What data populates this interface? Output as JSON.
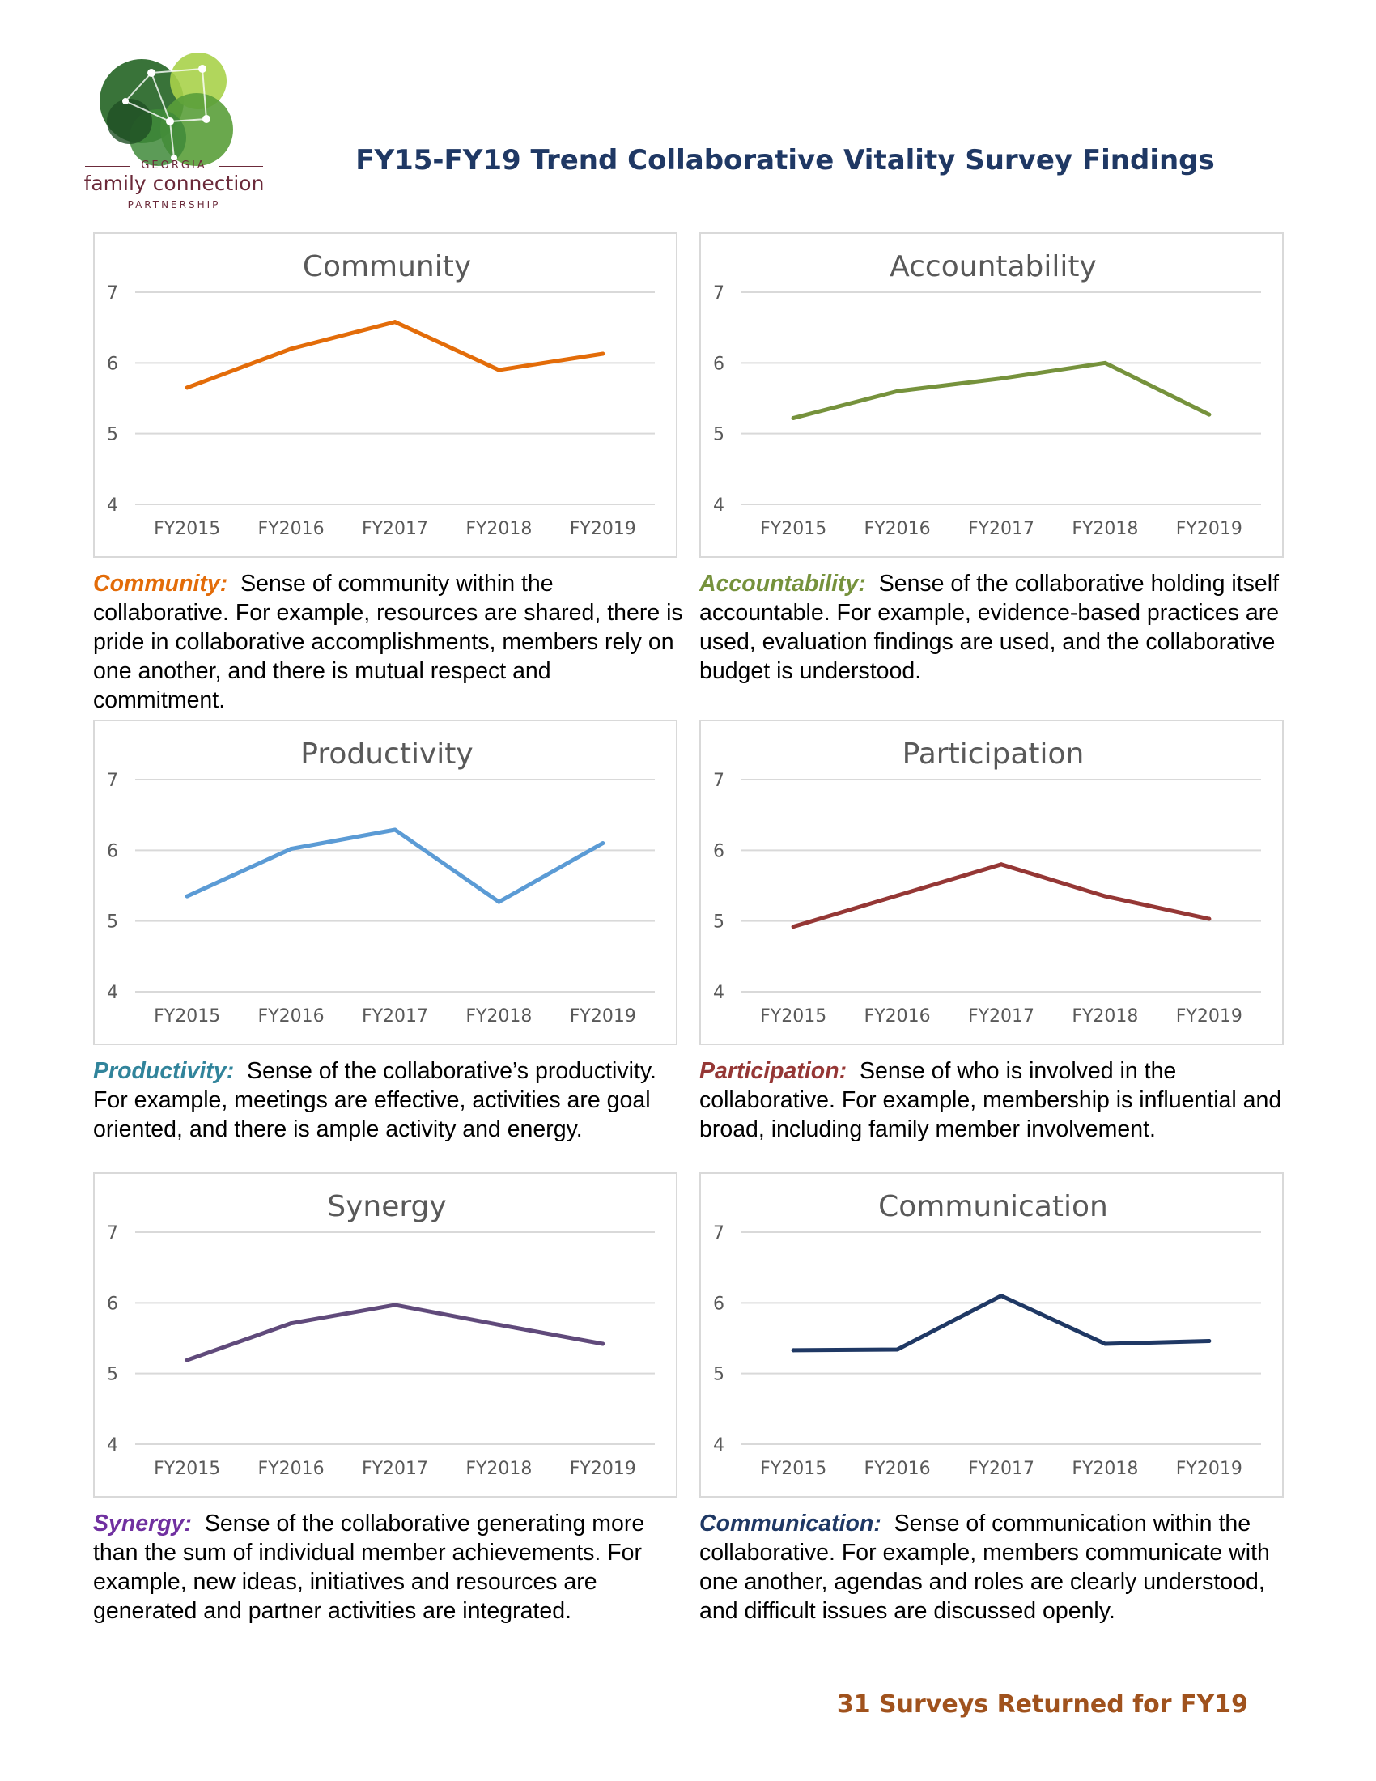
{
  "logo": {
    "line1": "GEORGIA",
    "line2": "family connection",
    "line3": "PARTNERSHIP",
    "brand_color": "#6b2a3a",
    "icon": "network-circles-logo"
  },
  "page_title": "FY15-FY19 Trend Collaborative Vitality Survey Findings",
  "footer": "31 Surveys Returned for FY19",
  "colors": {
    "title": "#1f3864",
    "footer": "#a0521d",
    "gridline": "#d9d9d9",
    "axis_text": "#595959"
  },
  "chart_data": [
    {
      "type": "line",
      "title": "Community",
      "categories": [
        "FY2015",
        "FY2016",
        "FY2017",
        "FY2018",
        "FY2019"
      ],
      "values": [
        5.65,
        6.2,
        6.58,
        5.9,
        6.13
      ],
      "ylim": [
        4,
        7
      ],
      "yticks": [
        "4",
        "5",
        "6",
        "7"
      ],
      "color": "#e36c09",
      "grid": true
    },
    {
      "type": "line",
      "title": "Accountability",
      "categories": [
        "FY2015",
        "FY2016",
        "FY2017",
        "FY2018",
        "FY2019"
      ],
      "values": [
        5.22,
        5.6,
        5.78,
        6.0,
        5.27
      ],
      "ylim": [
        4,
        7
      ],
      "yticks": [
        "4",
        "5",
        "6",
        "7"
      ],
      "color": "#76923c",
      "grid": true
    },
    {
      "type": "line",
      "title": "Productivity",
      "categories": [
        "FY2015",
        "FY2016",
        "FY2017",
        "FY2018",
        "FY2019"
      ],
      "values": [
        5.35,
        6.02,
        6.29,
        5.27,
        6.1
      ],
      "ylim": [
        4,
        7
      ],
      "yticks": [
        "4",
        "5",
        "6",
        "7"
      ],
      "color": "#5b9bd5",
      "grid": true
    },
    {
      "type": "line",
      "title": "Participation",
      "categories": [
        "FY2015",
        "FY2016",
        "FY2017",
        "FY2018",
        "FY2019"
      ],
      "values": [
        4.92,
        5.36,
        5.8,
        5.35,
        5.03
      ],
      "ylim": [
        4,
        7
      ],
      "yticks": [
        "4",
        "5",
        "6",
        "7"
      ],
      "color": "#953735",
      "grid": true
    },
    {
      "type": "line",
      "title": "Synergy",
      "categories": [
        "FY2015",
        "FY2016",
        "FY2017",
        "FY2018",
        "FY2019"
      ],
      "values": [
        5.19,
        5.71,
        5.97,
        5.69,
        5.42
      ],
      "ylim": [
        4,
        7
      ],
      "yticks": [
        "4",
        "5",
        "6",
        "7"
      ],
      "color": "#604a7b",
      "grid": true
    },
    {
      "type": "line",
      "title": "Communication",
      "categories": [
        "FY2015",
        "FY2016",
        "FY2017",
        "FY2018",
        "FY2019"
      ],
      "values": [
        5.33,
        5.34,
        6.1,
        5.42,
        5.46
      ],
      "ylim": [
        4,
        7
      ],
      "yticks": [
        "4",
        "5",
        "6",
        "7"
      ],
      "color": "#1f3864",
      "grid": true
    }
  ],
  "descriptions": [
    {
      "term": "Community:",
      "color": "#e36c09",
      "text": "Sense of community within the collaborative.  For example, resources are shared, there is pride in collaborative accomplishments, members rely on one another, and there is mutual respect and commitment."
    },
    {
      "term": "Accountability:",
      "color": "#76923c",
      "text": "Sense of the collaborative holding itself accountable.  For example, evidence-based practices are used, evaluation findings are used, and the collaborative budget is understood."
    },
    {
      "term": "Productivity:",
      "color": "#31849b",
      "text": "Sense of the collaborative’s productivity. For example, meetings are effective, activities are goal oriented, and there is ample activity and energy."
    },
    {
      "term": "Participation:",
      "color": "#953735",
      "text": "Sense of who is involved in the collaborative.  For example, membership is influential and broad, including family member involvement."
    },
    {
      "term": "Synergy:",
      "color": "#7030a0",
      "text": "Sense of the collaborative generating more than the sum of individual member achievements.  For example, new ideas, initiatives and resources are generated and partner activities are integrated."
    },
    {
      "term": "Communication:",
      "color": "#1f3864",
      "text": "Sense of communication within the collaborative.  For example, members communicate with one another, agendas and roles are clearly understood, and difficult issues are discussed openly."
    }
  ]
}
